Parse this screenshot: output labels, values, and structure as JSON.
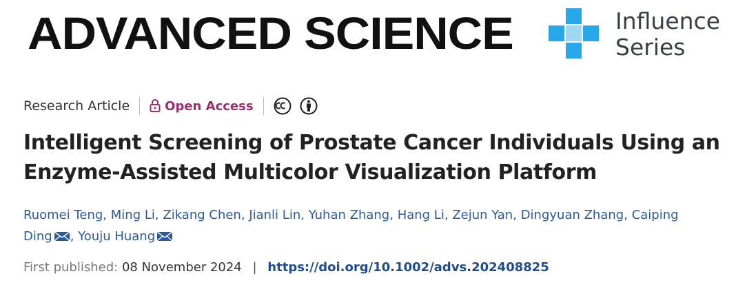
{
  "header": {
    "journal": "ADVANCED SCIENCE",
    "badge": [
      "Influence",
      "Series"
    ]
  },
  "article": {
    "type": "Research Article",
    "access": "Open Access",
    "title_lines": [
      "Intelligent Screening of Prostate Cancer Individuals Using an",
      "Enzyme-Assisted Multicolor Visualization Platform"
    ],
    "authors": {
      "separator": ",",
      "list": [
        {
          "name": "Ruomei Teng",
          "email": false
        },
        {
          "name": "Ming Li",
          "email": false
        },
        {
          "name": "Zikang Chen",
          "email": false
        },
        {
          "name": "Jianli Lin",
          "email": false
        },
        {
          "name": "Yuhan Zhang",
          "email": false
        },
        {
          "name": "Hang Li",
          "email": false
        },
        {
          "name": "Zejun Yan",
          "email": false
        },
        {
          "name": "Dingyuan Zhang",
          "email": false
        },
        {
          "name": "Caiping Ding",
          "email": true
        },
        {
          "name": "Youju Huang",
          "email": true
        }
      ]
    },
    "published": {
      "label": "First published:",
      "date": "08 November 2024",
      "divider": "|",
      "doi": "https://doi.org/10.1002/advs.202408825"
    }
  }
}
